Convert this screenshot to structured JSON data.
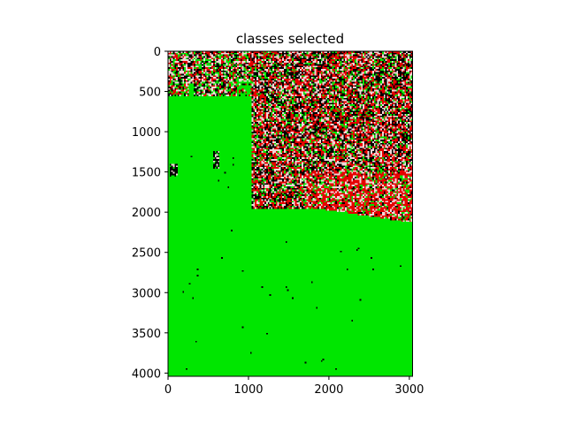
{
  "chart_data": {
    "type": "heatmap",
    "title": "classes selected",
    "xlabel": "",
    "ylabel": "",
    "xlim": [
      0,
      3040
    ],
    "ylim": [
      4040,
      0
    ],
    "y_axis_inverted": true,
    "grid": false,
    "legend": "none",
    "x_ticks": [
      0,
      1000,
      2000,
      3000
    ],
    "x_tick_labels": [
      "0",
      "1000",
      "2000",
      "3000"
    ],
    "y_ticks": [
      0,
      500,
      1000,
      1500,
      2000,
      2500,
      3000,
      3500,
      4000
    ],
    "y_tick_labels": [
      "0",
      "500",
      "1000",
      "1500",
      "2000",
      "2500",
      "3000",
      "3500",
      "4000"
    ],
    "colors": {
      "background_class": "#00e600",
      "selected_class": "#e60000",
      "light_class": "#f0d6d6",
      "dark_class": "#000000"
    },
    "regions": [
      {
        "name": "top-left textured band",
        "x": [
          0,
          1120
        ],
        "y": [
          0,
          560
        ],
        "class_mix": "mixed"
      },
      {
        "name": "main textured block",
        "x": [
          1040,
          3040
        ],
        "y": [
          0,
          2130
        ],
        "class_mix": "mixed, red-dominant near bottom"
      },
      {
        "name": "small dark patch left",
        "x": [
          30,
          110
        ],
        "y": [
          1400,
          1560
        ],
        "class_mix": "dark"
      },
      {
        "name": "small dark patch center",
        "x": [
          560,
          640
        ],
        "y": [
          1250,
          1450
        ],
        "class_mix": "dark"
      }
    ]
  }
}
